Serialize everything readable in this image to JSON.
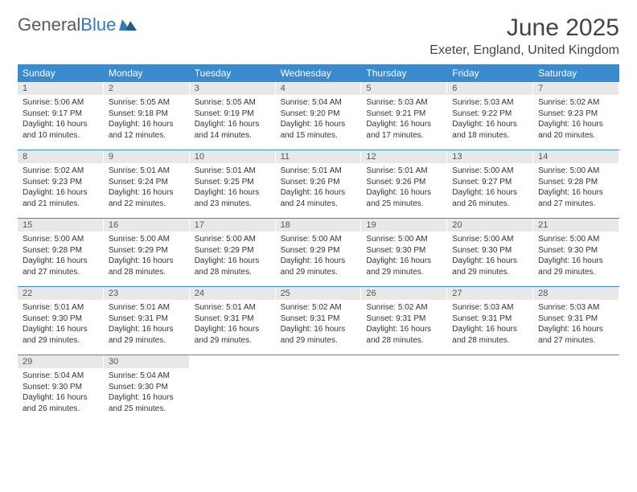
{
  "logo": {
    "text1": "General",
    "text2": "Blue"
  },
  "title": "June 2025",
  "location": "Exeter, England, United Kingdom",
  "colors": {
    "header_bg": "#3a8bce",
    "header_text": "#ffffff",
    "daynum_bg": "#e8e8e8",
    "border": "#3a8bce",
    "text": "#333333",
    "logo_gray": "#5a5a5a",
    "logo_blue": "#2e7cc0"
  },
  "weekdays": [
    "Sunday",
    "Monday",
    "Tuesday",
    "Wednesday",
    "Thursday",
    "Friday",
    "Saturday"
  ],
  "weeks": [
    [
      {
        "n": "1",
        "sunrise": "5:06 AM",
        "sunset": "9:17 PM",
        "daylight": "16 hours and 10 minutes."
      },
      {
        "n": "2",
        "sunrise": "5:05 AM",
        "sunset": "9:18 PM",
        "daylight": "16 hours and 12 minutes."
      },
      {
        "n": "3",
        "sunrise": "5:05 AM",
        "sunset": "9:19 PM",
        "daylight": "16 hours and 14 minutes."
      },
      {
        "n": "4",
        "sunrise": "5:04 AM",
        "sunset": "9:20 PM",
        "daylight": "16 hours and 15 minutes."
      },
      {
        "n": "5",
        "sunrise": "5:03 AM",
        "sunset": "9:21 PM",
        "daylight": "16 hours and 17 minutes."
      },
      {
        "n": "6",
        "sunrise": "5:03 AM",
        "sunset": "9:22 PM",
        "daylight": "16 hours and 18 minutes."
      },
      {
        "n": "7",
        "sunrise": "5:02 AM",
        "sunset": "9:23 PM",
        "daylight": "16 hours and 20 minutes."
      }
    ],
    [
      {
        "n": "8",
        "sunrise": "5:02 AM",
        "sunset": "9:23 PM",
        "daylight": "16 hours and 21 minutes."
      },
      {
        "n": "9",
        "sunrise": "5:01 AM",
        "sunset": "9:24 PM",
        "daylight": "16 hours and 22 minutes."
      },
      {
        "n": "10",
        "sunrise": "5:01 AM",
        "sunset": "9:25 PM",
        "daylight": "16 hours and 23 minutes."
      },
      {
        "n": "11",
        "sunrise": "5:01 AM",
        "sunset": "9:26 PM",
        "daylight": "16 hours and 24 minutes."
      },
      {
        "n": "12",
        "sunrise": "5:01 AM",
        "sunset": "9:26 PM",
        "daylight": "16 hours and 25 minutes."
      },
      {
        "n": "13",
        "sunrise": "5:00 AM",
        "sunset": "9:27 PM",
        "daylight": "16 hours and 26 minutes."
      },
      {
        "n": "14",
        "sunrise": "5:00 AM",
        "sunset": "9:28 PM",
        "daylight": "16 hours and 27 minutes."
      }
    ],
    [
      {
        "n": "15",
        "sunrise": "5:00 AM",
        "sunset": "9:28 PM",
        "daylight": "16 hours and 27 minutes."
      },
      {
        "n": "16",
        "sunrise": "5:00 AM",
        "sunset": "9:29 PM",
        "daylight": "16 hours and 28 minutes."
      },
      {
        "n": "17",
        "sunrise": "5:00 AM",
        "sunset": "9:29 PM",
        "daylight": "16 hours and 28 minutes."
      },
      {
        "n": "18",
        "sunrise": "5:00 AM",
        "sunset": "9:29 PM",
        "daylight": "16 hours and 29 minutes."
      },
      {
        "n": "19",
        "sunrise": "5:00 AM",
        "sunset": "9:30 PM",
        "daylight": "16 hours and 29 minutes."
      },
      {
        "n": "20",
        "sunrise": "5:00 AM",
        "sunset": "9:30 PM",
        "daylight": "16 hours and 29 minutes."
      },
      {
        "n": "21",
        "sunrise": "5:00 AM",
        "sunset": "9:30 PM",
        "daylight": "16 hours and 29 minutes."
      }
    ],
    [
      {
        "n": "22",
        "sunrise": "5:01 AM",
        "sunset": "9:30 PM",
        "daylight": "16 hours and 29 minutes."
      },
      {
        "n": "23",
        "sunrise": "5:01 AM",
        "sunset": "9:31 PM",
        "daylight": "16 hours and 29 minutes."
      },
      {
        "n": "24",
        "sunrise": "5:01 AM",
        "sunset": "9:31 PM",
        "daylight": "16 hours and 29 minutes."
      },
      {
        "n": "25",
        "sunrise": "5:02 AM",
        "sunset": "9:31 PM",
        "daylight": "16 hours and 29 minutes."
      },
      {
        "n": "26",
        "sunrise": "5:02 AM",
        "sunset": "9:31 PM",
        "daylight": "16 hours and 28 minutes."
      },
      {
        "n": "27",
        "sunrise": "5:03 AM",
        "sunset": "9:31 PM",
        "daylight": "16 hours and 28 minutes."
      },
      {
        "n": "28",
        "sunrise": "5:03 AM",
        "sunset": "9:31 PM",
        "daylight": "16 hours and 27 minutes."
      }
    ],
    [
      {
        "n": "29",
        "sunrise": "5:04 AM",
        "sunset": "9:30 PM",
        "daylight": "16 hours and 26 minutes."
      },
      {
        "n": "30",
        "sunrise": "5:04 AM",
        "sunset": "9:30 PM",
        "daylight": "16 hours and 25 minutes."
      },
      null,
      null,
      null,
      null,
      null
    ]
  ],
  "labels": {
    "sunrise": "Sunrise:",
    "sunset": "Sunset:",
    "daylight": "Daylight:"
  }
}
